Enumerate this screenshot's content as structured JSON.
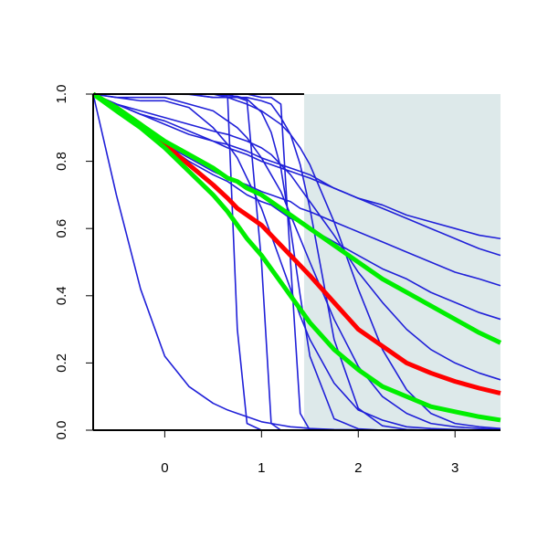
{
  "chart_data": {
    "type": "line",
    "x": [
      -0.74,
      -0.5,
      -0.25,
      0,
      0.25,
      0.5,
      0.65,
      0.75,
      0.85,
      1,
      1.1,
      1.2,
      1.3,
      1.4,
      1.5,
      1.75,
      2,
      2.25,
      2.5,
      2.75,
      3,
      3.25,
      3.47
    ],
    "xlim": [
      -0.74,
      3.47
    ],
    "ylim": [
      0,
      1
    ],
    "xticks": [
      0,
      1,
      2,
      3
    ],
    "yticks": [
      {
        "value": 0,
        "label": "0.0"
      },
      {
        "value": 0.2,
        "label": "0.2"
      },
      {
        "value": 0.4,
        "label": "0.4"
      },
      {
        "value": 0.6,
        "label": "0.6"
      },
      {
        "value": 0.8,
        "label": "0.8"
      },
      {
        "value": 1,
        "label": "1.0"
      }
    ],
    "shaded_region": {
      "xlim": [
        1.44,
        3.47
      ],
      "color": "#dde9ea"
    },
    "series": [
      {
        "color": "#2020d8",
        "values": [
          1,
          0.7,
          0.42,
          0.22,
          0.13,
          0.08,
          0.06,
          0.05,
          0.04,
          0.025,
          0.02,
          0.015,
          0.01,
          0.008,
          0.005,
          0.002,
          0.001,
          0,
          0,
          0,
          0,
          0,
          0
        ]
      },
      {
        "color": "#2020d8",
        "values": [
          1,
          1,
          1,
          1,
          1,
          1,
          0.99,
          0.3,
          0.02,
          0,
          0,
          0,
          0,
          0,
          0,
          0,
          0,
          0,
          0,
          0,
          0,
          0,
          0
        ]
      },
      {
        "color": "#2020d8",
        "values": [
          1,
          1,
          1,
          1,
          1,
          1,
          1,
          0.99,
          0.98,
          0.5,
          0.02,
          0,
          0,
          0,
          0,
          0,
          0,
          0,
          0,
          0,
          0,
          0,
          0
        ]
      },
      {
        "color": "#2020d8",
        "values": [
          1,
          1,
          1,
          1,
          1,
          1,
          1,
          1,
          1,
          0.99,
          0.99,
          0.97,
          0.5,
          0.05,
          0,
          0,
          0,
          0,
          0,
          0,
          0,
          0,
          0
        ]
      },
      {
        "color": "#2020d8",
        "values": [
          1,
          1,
          1,
          1,
          1,
          1,
          0.995,
          0.993,
          0.985,
          0.946,
          0.886,
          0.78,
          0.6,
          0.4,
          0.22,
          0.034,
          0.004,
          0,
          0,
          0,
          0,
          0,
          0
        ]
      },
      {
        "color": "#2020d8",
        "values": [
          1,
          0.97,
          0.94,
          0.92,
          0.89,
          0.86,
          0.84,
          0.83,
          0.82,
          0.8,
          0.79,
          0.78,
          0.77,
          0.76,
          0.75,
          0.72,
          0.69,
          0.67,
          0.64,
          0.62,
          0.6,
          0.58,
          0.57
        ]
      },
      {
        "color": "#2020d8",
        "values": [
          1,
          0.95,
          0.9,
          0.85,
          0.81,
          0.77,
          0.75,
          0.74,
          0.73,
          0.71,
          0.7,
          0.69,
          0.68,
          0.66,
          0.65,
          0.62,
          0.59,
          0.56,
          0.53,
          0.5,
          0.47,
          0.45,
          0.43
        ]
      },
      {
        "color": "#2020d8",
        "values": [
          1,
          0.95,
          0.9,
          0.85,
          0.8,
          0.76,
          0.74,
          0.72,
          0.7,
          0.68,
          0.67,
          0.65,
          0.63,
          0.62,
          0.6,
          0.56,
          0.52,
          0.48,
          0.45,
          0.41,
          0.38,
          0.35,
          0.33
        ]
      },
      {
        "color": "#2020d8",
        "values": [
          1,
          1,
          1,
          1,
          1,
          0.99,
          0.99,
          0.99,
          0.99,
          0.98,
          0.97,
          0.93,
          0.88,
          0.79,
          0.66,
          0.27,
          0.065,
          0.013,
          0.002,
          0,
          0,
          0,
          0
        ]
      },
      {
        "color": "#2020d8",
        "values": [
          1,
          1,
          1,
          1,
          0.999,
          0.99,
          0.99,
          0.98,
          0.97,
          0.95,
          0.93,
          0.91,
          0.88,
          0.84,
          0.79,
          0.62,
          0.42,
          0.24,
          0.12,
          0.05,
          0.02,
          0.01,
          0.005
        ]
      },
      {
        "color": "#2020d8",
        "values": [
          1,
          0.99,
          0.98,
          0.98,
          0.96,
          0.9,
          0.85,
          0.81,
          0.75,
          0.66,
          0.58,
          0.5,
          0.42,
          0.34,
          0.27,
          0.14,
          0.06,
          0.03,
          0.01,
          0.005,
          0.002,
          0,
          0
        ]
      },
      {
        "color": "#2020d8",
        "values": [
          1,
          0.97,
          0.95,
          0.93,
          0.91,
          0.89,
          0.88,
          0.87,
          0.86,
          0.84,
          0.82,
          0.79,
          0.76,
          0.72,
          0.68,
          0.58,
          0.47,
          0.38,
          0.3,
          0.24,
          0.2,
          0.17,
          0.15
        ]
      },
      {
        "color": "#2020d8",
        "values": [
          1,
          0.97,
          0.94,
          0.91,
          0.88,
          0.86,
          0.85,
          0.84,
          0.83,
          0.81,
          0.8,
          0.79,
          0.78,
          0.77,
          0.76,
          0.72,
          0.69,
          0.66,
          0.63,
          0.6,
          0.57,
          0.54,
          0.52
        ]
      },
      {
        "color": "#2020d8",
        "values": [
          1,
          0.99,
          0.99,
          0.99,
          0.97,
          0.95,
          0.92,
          0.9,
          0.87,
          0.81,
          0.76,
          0.71,
          0.64,
          0.57,
          0.5,
          0.33,
          0.19,
          0.1,
          0.05,
          0.02,
          0.01,
          0.005,
          0.002
        ]
      },
      {
        "color": "#ff0000",
        "values": [
          1,
          0.96,
          0.91,
          0.85,
          0.79,
          0.73,
          0.69,
          0.66,
          0.64,
          0.61,
          0.58,
          0.55,
          0.52,
          0.49,
          0.46,
          0.38,
          0.3,
          0.25,
          0.2,
          0.17,
          0.145,
          0.125,
          0.11
        ]
      },
      {
        "color": "#00ee00",
        "values": [
          1,
          0.96,
          0.91,
          0.86,
          0.82,
          0.78,
          0.75,
          0.74,
          0.72,
          0.7,
          0.68,
          0.66,
          0.64,
          0.62,
          0.6,
          0.55,
          0.5,
          0.45,
          0.41,
          0.37,
          0.33,
          0.29,
          0.26
        ]
      },
      {
        "color": "#00ee00",
        "values": [
          1,
          0.95,
          0.9,
          0.84,
          0.77,
          0.7,
          0.65,
          0.61,
          0.57,
          0.52,
          0.48,
          0.44,
          0.4,
          0.36,
          0.32,
          0.24,
          0.18,
          0.13,
          0.1,
          0.07,
          0.055,
          0.04,
          0.03
        ]
      }
    ]
  }
}
